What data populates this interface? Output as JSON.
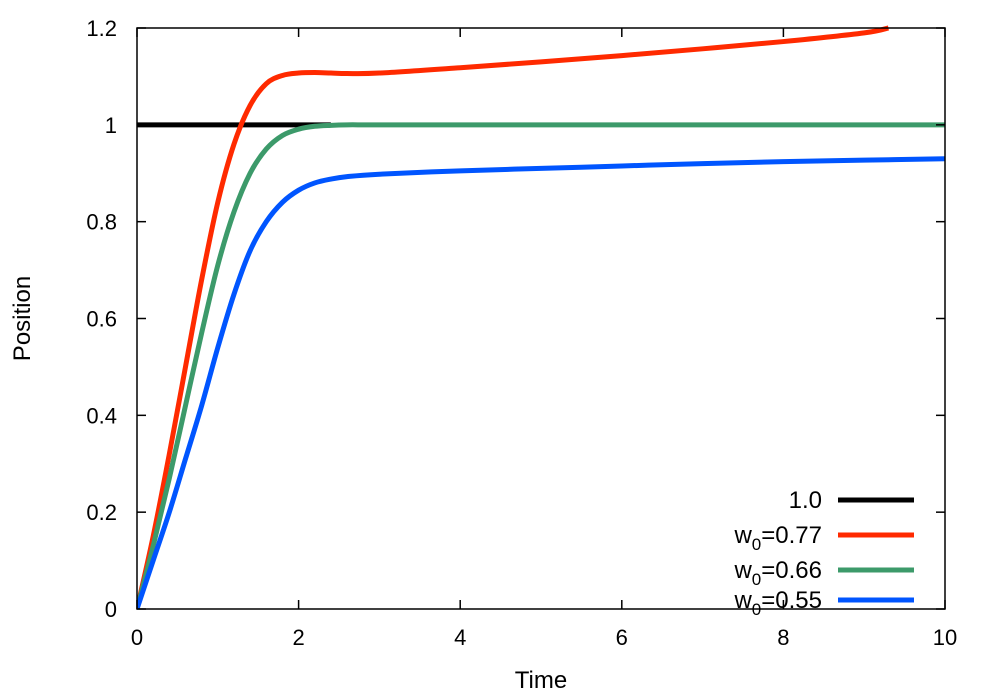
{
  "chart_data": {
    "type": "line",
    "title": "",
    "xlabel": "Time",
    "ylabel": "Position",
    "xlim": [
      0,
      10
    ],
    "ylim": [
      0,
      1.2
    ],
    "xticks": [
      0,
      2,
      4,
      6,
      8,
      10
    ],
    "xtick_labels": [
      "0",
      "2",
      "4",
      "6",
      "8",
      "10"
    ],
    "yticks": [
      0,
      0.2,
      0.4,
      0.6,
      0.8,
      1.0,
      1.2
    ],
    "ytick_labels": [
      "0",
      "0.2",
      "0.4",
      "0.6",
      "0.8",
      "1",
      "1.2"
    ],
    "grid": false,
    "legend_position": "bottom-right",
    "series": [
      {
        "name": "1.0",
        "legend": {
          "base": "1.0",
          "sub": "",
          "rest": ""
        },
        "color": "#000000",
        "x": [
          0,
          2.4
        ],
        "y": [
          1.0,
          1.0
        ]
      },
      {
        "name": "w0=0.77",
        "legend": {
          "base": "w",
          "sub": "0",
          "rest": "=0.77"
        },
        "color": "#ff2a00",
        "x": [
          0,
          0.2,
          0.4,
          0.6,
          0.8,
          1.0,
          1.2,
          1.4,
          1.6,
          1.8,
          2.0,
          2.2,
          2.4,
          2.6,
          3.0,
          4.0,
          5.0,
          6.0,
          7.0,
          8.0,
          9.0,
          9.3
        ],
        "y": [
          0,
          0.15,
          0.32,
          0.5,
          0.68,
          0.84,
          0.96,
          1.04,
          1.085,
          1.102,
          1.107,
          1.108,
          1.107,
          1.106,
          1.107,
          1.118,
          1.13,
          1.143,
          1.157,
          1.172,
          1.19,
          1.2
        ]
      },
      {
        "name": "w0=0.66",
        "legend": {
          "base": "w",
          "sub": "0",
          "rest": "=0.66"
        },
        "color": "#3c9a6a",
        "x": [
          0,
          0.2,
          0.4,
          0.6,
          0.8,
          1.0,
          1.2,
          1.4,
          1.6,
          1.8,
          2.0,
          2.2,
          2.4,
          2.6,
          2.8,
          3.0,
          4.0,
          6.0,
          8.0,
          10.0
        ],
        "y": [
          0,
          0.13,
          0.27,
          0.42,
          0.57,
          0.71,
          0.82,
          0.9,
          0.95,
          0.978,
          0.991,
          0.997,
          0.999,
          1.0,
          1.0,
          1.0,
          1.0,
          1.0,
          1.0,
          1.0
        ]
      },
      {
        "name": "w0=0.55",
        "legend": {
          "base": "w",
          "sub": "0",
          "rest": "=0.55"
        },
        "color": "#0055ff",
        "x": [
          0,
          0.2,
          0.4,
          0.6,
          0.8,
          1.0,
          1.2,
          1.4,
          1.6,
          1.8,
          2.0,
          2.2,
          2.4,
          2.6,
          3.0,
          4.0,
          5.0,
          6.0,
          7.0,
          8.0,
          9.0,
          10.0
        ],
        "y": [
          0,
          0.1,
          0.2,
          0.31,
          0.42,
          0.54,
          0.65,
          0.74,
          0.8,
          0.84,
          0.865,
          0.88,
          0.888,
          0.893,
          0.898,
          0.905,
          0.91,
          0.915,
          0.92,
          0.924,
          0.927,
          0.93
        ]
      }
    ]
  }
}
